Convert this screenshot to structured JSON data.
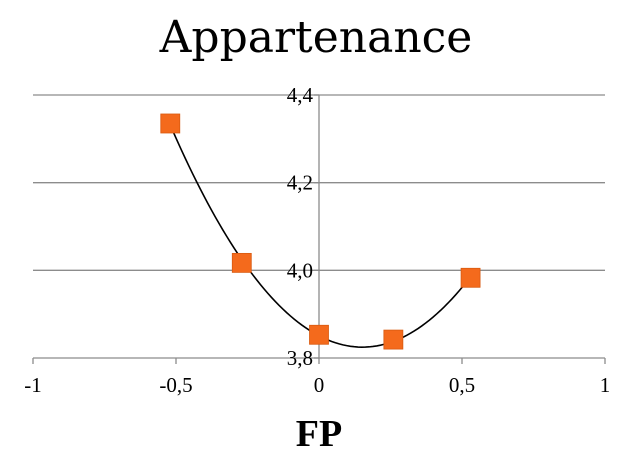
{
  "chart_data": {
    "type": "scatter",
    "title": "Appartenance",
    "xlabel": "FP",
    "ylabel": "",
    "xlim": [
      -1,
      1
    ],
    "ylim": [
      3.8,
      4.4
    ],
    "x_ticks": [
      "-1",
      "-0,5",
      "0",
      "0,5",
      "1"
    ],
    "y_ticks": [
      "3,8",
      "4,0",
      "4,2",
      "4,4"
    ],
    "x_tick_values": [
      -1,
      -0.5,
      0,
      0.5,
      1
    ],
    "y_tick_values": [
      3.8,
      4.0,
      4.2,
      4.4
    ],
    "grid": true,
    "legend": "none",
    "marker_color": "#f46a1c",
    "trendline": "polynomial-2",
    "trendline_color": "#000000",
    "points": [
      {
        "x": -0.52,
        "y": 4.335
      },
      {
        "x": -0.27,
        "y": 4.017
      },
      {
        "x": 0.0,
        "y": 3.853
      },
      {
        "x": 0.26,
        "y": 3.842
      },
      {
        "x": 0.53,
        "y": 3.983
      }
    ]
  }
}
